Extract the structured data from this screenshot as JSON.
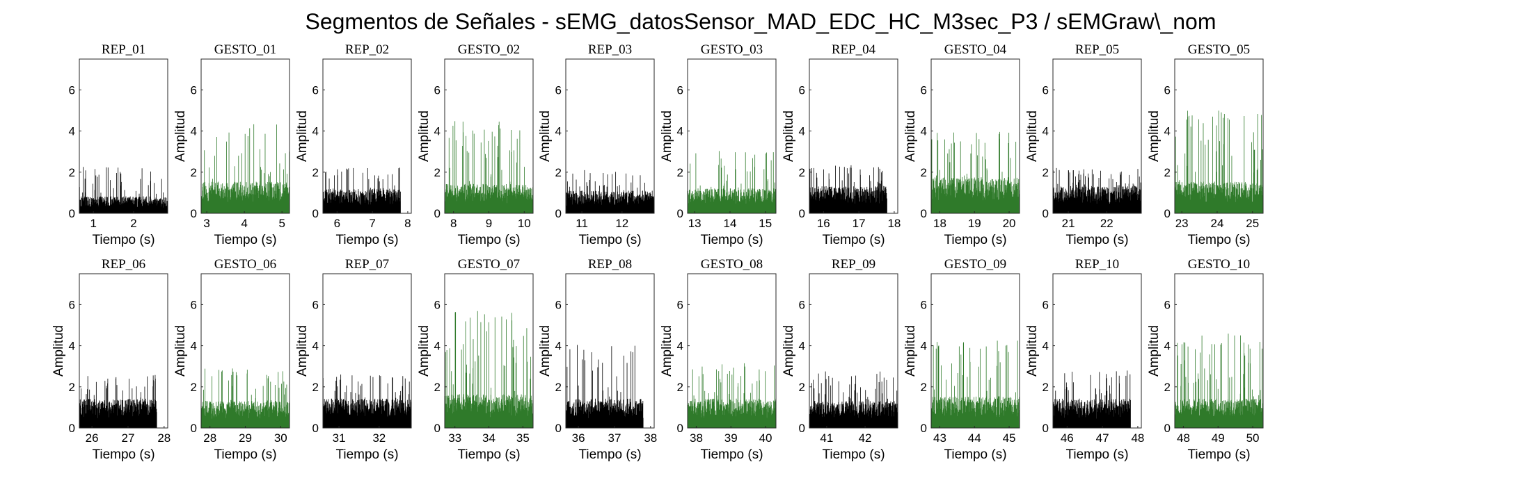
{
  "figure_title": "Segmentos de Señales - sEMG_datosSensor_MAD_EDC_HC_M3sec_P3 / sEMGraw\\_nom",
  "colors": {
    "rep": "#000000",
    "gesto": "#2f7a2a",
    "axes": "#262626"
  },
  "chart_data": [
    {
      "type": "line",
      "title": "REP_01",
      "series": [
        {
          "color": "rep"
        }
      ],
      "xlim": [
        0.65,
        2.85
      ],
      "xticks": [
        1,
        2
      ],
      "ylim": [
        0,
        7.5
      ],
      "yticks": [
        0,
        2,
        4,
        6
      ],
      "xlabel": "Tiempo (s)",
      "ylabel": "",
      "data_end": 2.85,
      "base_amp": 0.75,
      "peak_amp": 2.3
    },
    {
      "type": "line",
      "title": "GESTO_01",
      "series": [
        {
          "color": "gesto"
        }
      ],
      "xlim": [
        2.85,
        5.2
      ],
      "xticks": [
        3,
        4,
        5
      ],
      "ylim": [
        0,
        7.5
      ],
      "yticks": [
        0,
        2,
        4,
        6
      ],
      "xlabel": "Tiempo (s)",
      "ylabel": "Amplitud",
      "data_end": 5.2,
      "base_amp": 1.4,
      "peak_amp": 4.4
    },
    {
      "type": "line",
      "title": "REP_02",
      "series": [
        {
          "color": "rep"
        }
      ],
      "xlim": [
        5.6,
        8.1
      ],
      "xticks": [
        6,
        7,
        8
      ],
      "ylim": [
        0,
        7.5
      ],
      "yticks": [
        0,
        2,
        4,
        6
      ],
      "xlabel": "Tiempo (s)",
      "ylabel": "Amplitud",
      "data_end": 7.8,
      "base_amp": 1.1,
      "peak_amp": 2.3
    },
    {
      "type": "line",
      "title": "GESTO_02",
      "series": [
        {
          "color": "gesto"
        }
      ],
      "xlim": [
        7.75,
        10.25
      ],
      "xticks": [
        8,
        9,
        10
      ],
      "ylim": [
        0,
        7.5
      ],
      "yticks": [
        0,
        2,
        4,
        6
      ],
      "xlabel": "Tiempo (s)",
      "ylabel": "Amplitud",
      "data_end": 10.25,
      "base_amp": 1.3,
      "peak_amp": 4.5
    },
    {
      "type": "line",
      "title": "REP_03",
      "series": [
        {
          "color": "rep"
        }
      ],
      "xlim": [
        10.6,
        12.8
      ],
      "xticks": [
        11,
        12
      ],
      "ylim": [
        0,
        7.5
      ],
      "yticks": [
        0,
        2,
        4,
        6
      ],
      "xlabel": "Tiempo (s)",
      "ylabel": "Amplitud",
      "data_end": 12.8,
      "base_amp": 1.0,
      "peak_amp": 2.2
    },
    {
      "type": "line",
      "title": "GESTO_03",
      "series": [
        {
          "color": "gesto"
        }
      ],
      "xlim": [
        12.8,
        15.3
      ],
      "xticks": [
        13,
        14,
        15
      ],
      "ylim": [
        0,
        7.5
      ],
      "yticks": [
        0,
        2,
        4,
        6
      ],
      "xlabel": "Tiempo (s)",
      "ylabel": "Amplitud",
      "data_end": 15.3,
      "base_amp": 1.1,
      "peak_amp": 3.1
    },
    {
      "type": "line",
      "title": "REP_04",
      "series": [
        {
          "color": "rep"
        }
      ],
      "xlim": [
        15.6,
        18.1
      ],
      "xticks": [
        16,
        17,
        18
      ],
      "ylim": [
        0,
        7.5
      ],
      "yticks": [
        0,
        2,
        4,
        6
      ],
      "xlabel": "Tiempo (s)",
      "ylabel": "Amplitud",
      "data_end": 17.8,
      "base_amp": 1.2,
      "peak_amp": 2.4
    },
    {
      "type": "line",
      "title": "GESTO_04",
      "series": [
        {
          "color": "gesto"
        }
      ],
      "xlim": [
        17.75,
        20.3
      ],
      "xticks": [
        18,
        19,
        20
      ],
      "ylim": [
        0,
        7.5
      ],
      "yticks": [
        0,
        2,
        4,
        6
      ],
      "xlabel": "Tiempo (s)",
      "ylabel": "Amplitud",
      "data_end": 20.3,
      "base_amp": 1.6,
      "peak_amp": 4.0
    },
    {
      "type": "line",
      "title": "REP_05",
      "series": [
        {
          "color": "rep"
        }
      ],
      "xlim": [
        20.6,
        22.9
      ],
      "xticks": [
        21,
        22
      ],
      "ylim": [
        0,
        7.5
      ],
      "yticks": [
        0,
        2,
        4,
        6
      ],
      "xlabel": "Tiempo (s)",
      "ylabel": "Amplitud",
      "data_end": 22.9,
      "base_amp": 1.2,
      "peak_amp": 2.2
    },
    {
      "type": "line",
      "title": "GESTO_05",
      "series": [
        {
          "color": "gesto"
        }
      ],
      "xlim": [
        22.8,
        25.3
      ],
      "xticks": [
        23,
        24,
        25
      ],
      "ylim": [
        0,
        7.5
      ],
      "yticks": [
        0,
        2,
        4,
        6
      ],
      "xlabel": "Tiempo (s)",
      "ylabel": "Amplitud",
      "data_end": 25.3,
      "base_amp": 1.4,
      "peak_amp": 5.0
    },
    {
      "type": "line",
      "title": "REP_06",
      "series": [
        {
          "color": "rep"
        }
      ],
      "xlim": [
        25.65,
        28.1
      ],
      "xticks": [
        26,
        27,
        28
      ],
      "ylim": [
        0,
        7.5
      ],
      "yticks": [
        0,
        2,
        4,
        6
      ],
      "xlabel": "Tiempo (s)",
      "ylabel": "Amplitud",
      "data_end": 27.8,
      "base_amp": 1.3,
      "peak_amp": 2.6
    },
    {
      "type": "line",
      "title": "GESTO_06",
      "series": [
        {
          "color": "gesto"
        }
      ],
      "xlim": [
        27.75,
        30.25
      ],
      "xticks": [
        28,
        29,
        30
      ],
      "ylim": [
        0,
        7.5
      ],
      "yticks": [
        0,
        2,
        4,
        6
      ],
      "xlabel": "Tiempo (s)",
      "ylabel": "Amplitud",
      "data_end": 30.25,
      "base_amp": 1.2,
      "peak_amp": 3.0
    },
    {
      "type": "line",
      "title": "REP_07",
      "series": [
        {
          "color": "rep"
        }
      ],
      "xlim": [
        30.6,
        32.8
      ],
      "xticks": [
        31,
        32
      ],
      "ylim": [
        0,
        7.5
      ],
      "yticks": [
        0,
        2,
        4,
        6
      ],
      "xlabel": "Tiempo (s)",
      "ylabel": "Amplitud",
      "data_end": 32.8,
      "base_amp": 1.3,
      "peak_amp": 2.7
    },
    {
      "type": "line",
      "title": "GESTO_07",
      "series": [
        {
          "color": "gesto"
        }
      ],
      "xlim": [
        32.7,
        35.3
      ],
      "xticks": [
        33,
        34,
        35
      ],
      "ylim": [
        0,
        7.5
      ],
      "yticks": [
        0,
        2,
        4,
        6
      ],
      "xlabel": "Tiempo (s)",
      "ylabel": "Amplitud",
      "data_end": 35.3,
      "base_amp": 1.5,
      "peak_amp": 5.7
    },
    {
      "type": "line",
      "title": "REP_08",
      "series": [
        {
          "color": "rep"
        }
      ],
      "xlim": [
        35.65,
        38.1
      ],
      "xticks": [
        36,
        37,
        38
      ],
      "ylim": [
        0,
        7.5
      ],
      "yticks": [
        0,
        2,
        4,
        6
      ],
      "xlabel": "Tiempo (s)",
      "ylabel": "Amplitud",
      "data_end": 37.8,
      "base_amp": 1.3,
      "peak_amp": 4.3
    },
    {
      "type": "line",
      "title": "GESTO_08",
      "series": [
        {
          "color": "gesto"
        }
      ],
      "xlim": [
        37.75,
        40.3
      ],
      "xticks": [
        38,
        39,
        40
      ],
      "ylim": [
        0,
        7.5
      ],
      "yticks": [
        0,
        2,
        4,
        6
      ],
      "xlabel": "Tiempo (s)",
      "ylabel": "Amplitud",
      "data_end": 40.3,
      "base_amp": 1.3,
      "peak_amp": 3.2
    },
    {
      "type": "line",
      "title": "REP_09",
      "series": [
        {
          "color": "rep"
        }
      ],
      "xlim": [
        40.55,
        42.85
      ],
      "xticks": [
        41,
        42
      ],
      "ylim": [
        0,
        7.5
      ],
      "yticks": [
        0,
        2,
        4,
        6
      ],
      "xlabel": "Tiempo (s)",
      "ylabel": "Amplitud",
      "data_end": 42.85,
      "base_amp": 1.2,
      "peak_amp": 2.8
    },
    {
      "type": "line",
      "title": "GESTO_09",
      "series": [
        {
          "color": "gesto"
        }
      ],
      "xlim": [
        42.75,
        45.3
      ],
      "xticks": [
        43,
        44,
        45
      ],
      "ylim": [
        0,
        7.5
      ],
      "yticks": [
        0,
        2,
        4,
        6
      ],
      "xlabel": "Tiempo (s)",
      "ylabel": "Amplitud",
      "data_end": 45.3,
      "base_amp": 1.4,
      "peak_amp": 4.3
    },
    {
      "type": "line",
      "title": "REP_10",
      "series": [
        {
          "color": "rep"
        }
      ],
      "xlim": [
        45.6,
        48.1
      ],
      "xticks": [
        46,
        47,
        48
      ],
      "ylim": [
        0,
        7.5
      ],
      "yticks": [
        0,
        2,
        4,
        6
      ],
      "xlabel": "Tiempo (s)",
      "ylabel": "Amplitud",
      "data_end": 47.8,
      "base_amp": 1.3,
      "peak_amp": 2.8
    },
    {
      "type": "line",
      "title": "GESTO_10",
      "series": [
        {
          "color": "gesto"
        }
      ],
      "xlim": [
        47.75,
        50.3
      ],
      "xticks": [
        48,
        49,
        50
      ],
      "ylim": [
        0,
        7.5
      ],
      "yticks": [
        0,
        2,
        4,
        6
      ],
      "xlabel": "Tiempo (s)",
      "ylabel": "Amplitud",
      "data_end": 50.3,
      "base_amp": 1.3,
      "peak_amp": 4.6
    }
  ]
}
